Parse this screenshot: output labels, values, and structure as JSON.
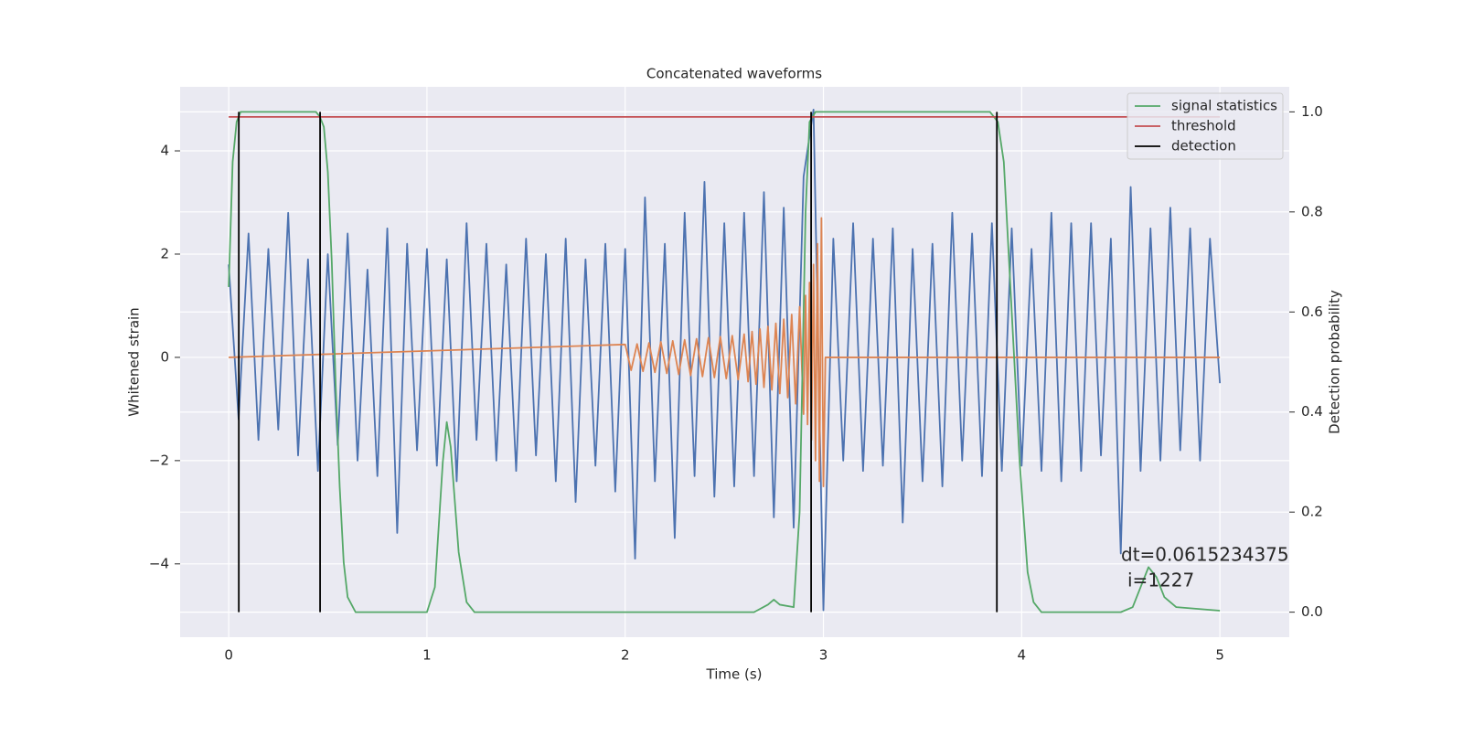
{
  "chart_data": {
    "type": "line",
    "title": "Concatenated waveforms",
    "x_label": "Time (s)",
    "y_label": "Whitened strain",
    "y2_label": "Detection probability",
    "xlim": [
      -0.245,
      5.35
    ],
    "ylim": [
      -5.42,
      5.24
    ],
    "y2lim": [
      -0.05,
      1.05
    ],
    "xticks": [
      0,
      1,
      2,
      3,
      4,
      5
    ],
    "yticks": [
      {
        "value": -4,
        "label": "−4"
      },
      {
        "value": -2,
        "label": "−2"
      },
      0,
      2,
      4
    ],
    "y2ticks": [
      {
        "value": 0,
        "label": "0.0"
      },
      {
        "value": 0.2,
        "label": "0.2"
      },
      {
        "value": 0.4,
        "label": "0.4"
      },
      {
        "value": 0.6,
        "label": "0.6"
      },
      {
        "value": 0.8,
        "label": "0.8"
      },
      {
        "value": 1,
        "label": "1.0"
      }
    ],
    "grid": true,
    "legend": "upper right",
    "annotation": [
      "dt=0.0615234375",
      "i=1227"
    ],
    "series": [
      {
        "type": "line",
        "color": "#4c72b0",
        "x": [
          0,
          0.05,
          0.1,
          0.15,
          0.2,
          0.25,
          0.3,
          0.35,
          0.4,
          0.45,
          0.5,
          0.55,
          0.6,
          0.65,
          0.7,
          0.75,
          0.8,
          0.85,
          0.9,
          0.95,
          1,
          1.05,
          1.1,
          1.15,
          1.2,
          1.25,
          1.3,
          1.35,
          1.4,
          1.45,
          1.5,
          1.55,
          1.6,
          1.65,
          1.7,
          1.75,
          1.8,
          1.85,
          1.9,
          1.95,
          2,
          2.05,
          2.1,
          2.15,
          2.2,
          2.25,
          2.3,
          2.35,
          2.4,
          2.45,
          2.5,
          2.55,
          2.6,
          2.65,
          2.7,
          2.75,
          2.8,
          2.85,
          2.9,
          2.95,
          3,
          3.05,
          3.1,
          3.15,
          3.2,
          3.25,
          3.3,
          3.35,
          3.4,
          3.45,
          3.5,
          3.55,
          3.6,
          3.65,
          3.7,
          3.75,
          3.8,
          3.85,
          3.9,
          3.95,
          4,
          4.05,
          4.1,
          4.15,
          4.2,
          4.25,
          4.3,
          4.35,
          4.4,
          4.45,
          4.5,
          4.55,
          4.6,
          4.65,
          4.7,
          4.75,
          4.8,
          4.85,
          4.9,
          4.95,
          5
        ],
        "values": [
          1.8,
          -1.2,
          2.4,
          -1.6,
          2.1,
          -1.4,
          2.8,
          -1.9,
          1.9,
          -2.2,
          2.0,
          -1.7,
          2.4,
          -2.0,
          1.7,
          -2.3,
          2.5,
          -3.4,
          2.2,
          -1.8,
          2.1,
          -2.1,
          1.9,
          -2.4,
          2.6,
          -1.6,
          2.2,
          -2.0,
          1.8,
          -2.2,
          2.3,
          -1.9,
          2.0,
          -2.4,
          2.3,
          -2.8,
          1.9,
          -2.1,
          2.2,
          -2.6,
          2.1,
          -3.9,
          3.1,
          -2.4,
          2.2,
          -3.5,
          2.8,
          -2.3,
          3.4,
          -2.7,
          2.6,
          -2.5,
          2.8,
          -2.3,
          3.2,
          -3.1,
          2.9,
          -3.3,
          3.5,
          4.8,
          -4.9,
          2.3,
          -2.0,
          2.6,
          -2.2,
          2.3,
          -2.1,
          2.5,
          -3.2,
          2.1,
          -2.4,
          2.2,
          -2.5,
          2.8,
          -2.0,
          2.4,
          -2.3,
          2.6,
          -2.2,
          2.5,
          -2.1,
          2.1,
          -2.2,
          2.8,
          -2.4,
          2.6,
          -2.2,
          2.6,
          -1.9,
          2.3,
          -3.8,
          3.3,
          -2.2,
          2.5,
          -2.0,
          2.9,
          -1.8,
          2.5,
          -2.0,
          2.3,
          -0.5
        ]
      },
      {
        "type": "line",
        "color": "#dd8452",
        "x": [
          0,
          2.0,
          2.03,
          2.06,
          2.09,
          2.12,
          2.15,
          2.18,
          2.21,
          2.24,
          2.27,
          2.3,
          2.33,
          2.36,
          2.39,
          2.42,
          2.45,
          2.48,
          2.51,
          2.54,
          2.57,
          2.6,
          2.62,
          2.64,
          2.66,
          2.68,
          2.7,
          2.72,
          2.74,
          2.76,
          2.78,
          2.8,
          2.82,
          2.84,
          2.86,
          2.88,
          2.9,
          2.91,
          2.92,
          2.93,
          2.94,
          2.95,
          2.96,
          2.97,
          2.98,
          2.99,
          3.0,
          3.01,
          5
        ],
        "values": [
          0,
          0.25,
          -0.25,
          0.26,
          -0.27,
          0.28,
          -0.29,
          0.3,
          -0.31,
          0.32,
          -0.33,
          0.34,
          -0.35,
          0.36,
          -0.37,
          0.38,
          -0.39,
          0.4,
          -0.41,
          0.42,
          -0.43,
          0.45,
          -0.47,
          0.5,
          -0.52,
          0.55,
          -0.58,
          0.6,
          -0.63,
          0.66,
          -0.7,
          0.74,
          -0.78,
          0.83,
          -0.9,
          0.98,
          -1.1,
          1.2,
          -1.3,
          1.45,
          -1.6,
          1.8,
          -2.0,
          2.2,
          -2.4,
          2.7,
          -2.5,
          0,
          0
        ]
      },
      {
        "type": "line",
        "name": "signal statistics",
        "color": "#55a868",
        "axis": "y2",
        "x": [
          0,
          0.02,
          0.04,
          0.06,
          0.08,
          0.1,
          0.44,
          0.46,
          0.48,
          0.5,
          0.52,
          0.54,
          0.56,
          0.58,
          0.6,
          0.64,
          1.0,
          1.04,
          1.08,
          1.1,
          1.12,
          1.16,
          1.2,
          1.24,
          2.65,
          2.72,
          2.75,
          2.78,
          2.85,
          2.88,
          2.91,
          2.93,
          2.96,
          3.84,
          3.88,
          3.91,
          3.95,
          3.99,
          4.03,
          4.06,
          4.1,
          4.5,
          4.56,
          4.6,
          4.64,
          4.68,
          4.72,
          4.78,
          5.0
        ],
        "values": [
          0.65,
          0.9,
          0.98,
          1.0,
          1.0,
          1.0,
          1.0,
          0.99,
          0.97,
          0.88,
          0.7,
          0.45,
          0.25,
          0.1,
          0.03,
          0.0,
          0.0,
          0.05,
          0.3,
          0.38,
          0.33,
          0.12,
          0.02,
          0.0,
          0.0,
          0.015,
          0.025,
          0.015,
          0.01,
          0.2,
          0.8,
          0.98,
          1.0,
          1.0,
          0.98,
          0.9,
          0.6,
          0.3,
          0.08,
          0.02,
          0.0,
          0.0,
          0.01,
          0.05,
          0.09,
          0.07,
          0.03,
          0.01,
          0.003
        ]
      },
      {
        "type": "line",
        "name": "threshold",
        "color": "#c44e52",
        "axis": "y2",
        "x": [
          0,
          5
        ],
        "values": [
          0.99,
          0.99
        ]
      },
      {
        "type": "vlines",
        "name": "detection",
        "color": "#000000",
        "axis": "y2",
        "x": [
          0.051,
          0.461,
          2.938,
          3.875
        ],
        "values": [
          1,
          1,
          1,
          1
        ]
      }
    ]
  }
}
